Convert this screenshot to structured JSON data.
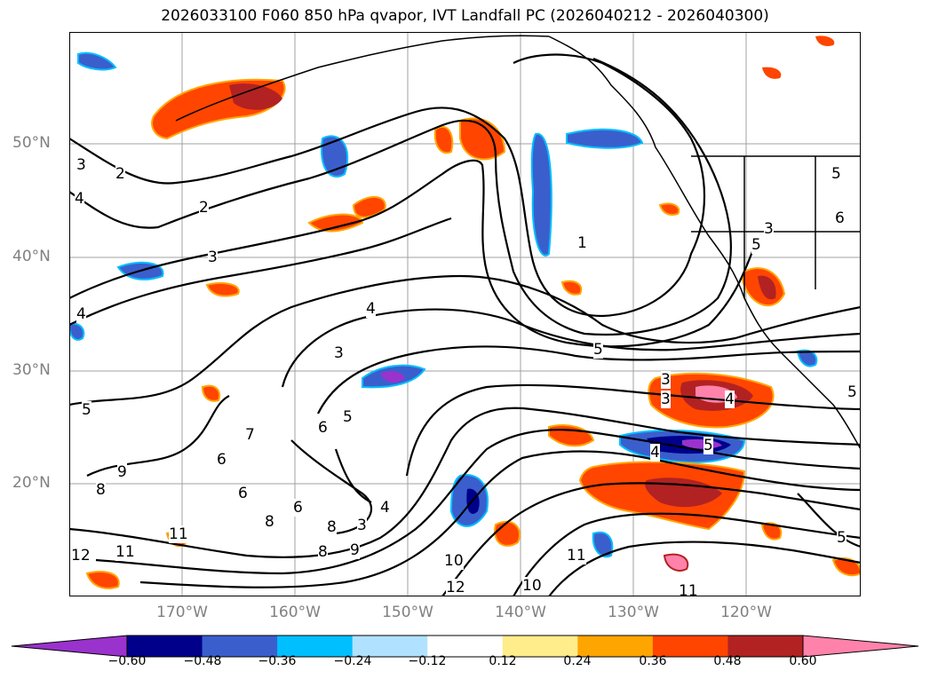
{
  "title": "2026033100 F060 850 hPa qvapor, IVT Landfall PC (2026040212 - 2026040300)",
  "lat_labels": [
    "50°N",
    "40°N",
    "30°N",
    "20°N"
  ],
  "lon_labels": [
    "170°W",
    "160°W",
    "150°W",
    "140°W",
    "130°W",
    "120°W"
  ],
  "colorbar": {
    "colors": [
      "#9a32cd",
      "#00008b",
      "#3a5fcd",
      "#00bfff",
      "#b0e2ff",
      "#ffffff",
      "#ffec8b",
      "#ffa500",
      "#ff4500",
      "#b22222",
      "#ff82ab"
    ],
    "tick_labels": [
      "−0.60",
      "−0.48",
      "−0.36",
      "−0.24",
      "−0.12",
      "0.12",
      "0.24",
      "0.36",
      "0.48",
      "0.60"
    ]
  },
  "contour_labels": [
    "3",
    "2",
    "4",
    "2",
    "3",
    "4",
    "1",
    "4",
    "3",
    "5",
    "3",
    "4",
    "5",
    "6",
    "5",
    "7",
    "6",
    "9",
    "8",
    "6",
    "6",
    "3",
    "4",
    "8",
    "8",
    "9",
    "11",
    "12",
    "10",
    "12",
    "10",
    "11",
    "11",
    "3",
    "4",
    "5",
    "5",
    "6",
    "5",
    "3",
    "5",
    "5",
    "11",
    "8"
  ]
}
